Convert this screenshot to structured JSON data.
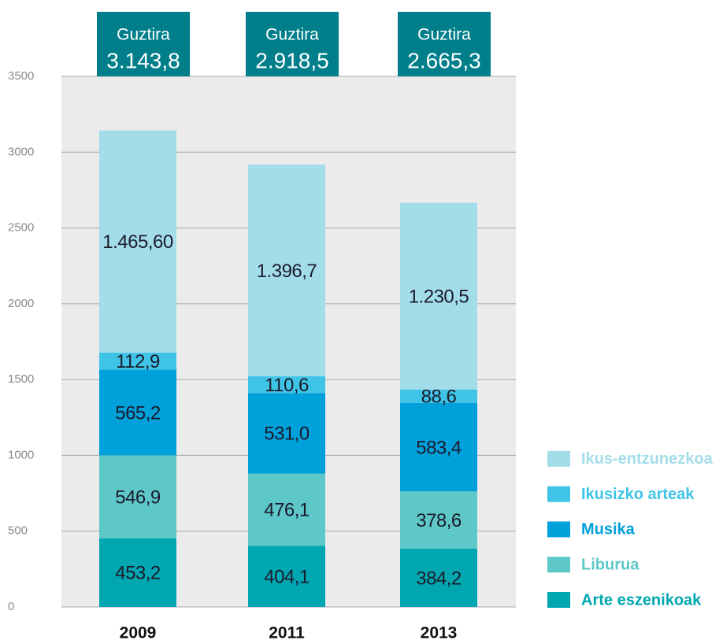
{
  "chart_data": {
    "type": "stacked_bar",
    "categories": [
      "2009",
      "2011",
      "2013"
    ],
    "series": [
      {
        "name": "Arte eszenikoak",
        "color": "#00a7b1",
        "values": [
          453.2,
          404.1,
          384.2
        ],
        "value_labels": [
          "453,2",
          "404,1",
          "384,2"
        ]
      },
      {
        "name": "Liburua",
        "color": "#5ec7c8",
        "values": [
          546.9,
          476.1,
          378.6
        ],
        "value_labels": [
          "546,9",
          "476,1",
          "378,6"
        ]
      },
      {
        "name": "Musika",
        "color": "#00a0db",
        "values": [
          565.2,
          531.0,
          583.4
        ],
        "value_labels": [
          "565,2",
          "531,0",
          "583,4"
        ]
      },
      {
        "name": "Ikusizko arteak",
        "color": "#3fc4e8",
        "values": [
          112.9,
          110.6,
          88.6
        ],
        "value_labels": [
          "112,9",
          "110,6",
          "88,6"
        ]
      },
      {
        "name": "Ikus-entzunezkoa",
        "color": "#a3dde9",
        "values": [
          1465.6,
          1396.7,
          1230.5
        ],
        "value_labels": [
          "1.465,60",
          "1.396,7",
          "1.230,5"
        ]
      }
    ],
    "total_title": "Guztira",
    "totals": [
      3143.8,
      2918.5,
      2665.3
    ],
    "total_labels": [
      "3.143,8",
      "2.918,5",
      "2.665,3"
    ],
    "total_color": "#007f8b",
    "ylim": [
      0,
      3500
    ],
    "yticks": [
      0,
      500,
      1000,
      1500,
      2000,
      2500,
      3000,
      3500
    ],
    "grid": true,
    "legend": "bottom-right"
  }
}
